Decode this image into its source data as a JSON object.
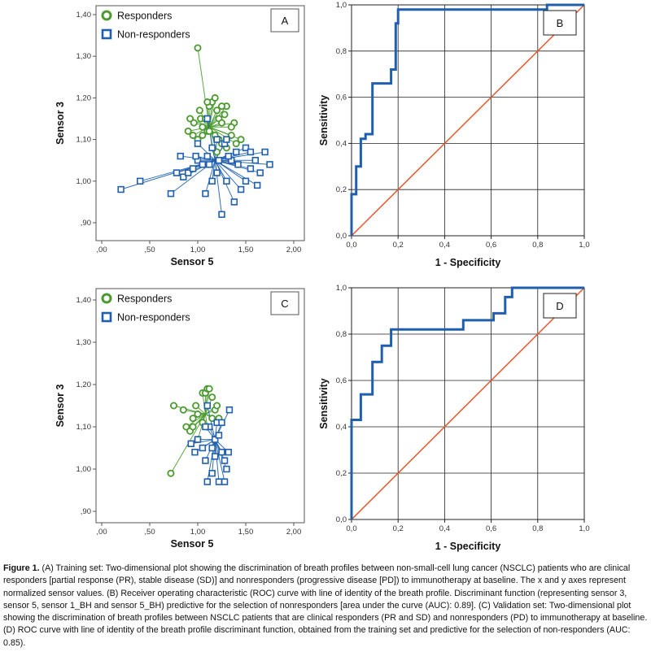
{
  "colors": {
    "responders": "#4a9a2f",
    "non_responders": "#1f5fae",
    "roc": "#1f5fae",
    "identity": "#e8572a",
    "grid": "#222"
  },
  "caption": {
    "title": "Figure 1.",
    "text": " (A) Training set: Two-dimensional plot showing the discrimination of breath profiles between non-small-cell lung cancer (NSCLC) patients who are clinical responders [partial response (PR), stable disease (SD)] and nonresponders (progressive disease [PD]) to immunotherapy at baseline. The x and y axes represent normalized sensor values. (B) Receiver operating characteristic (ROC) curve with line of identity of the breath profile. Discriminant function (representing sensor 3, sensor 5, sensor 1_BH and sensor 5_BH) predictive for the selection of nonresponders [area under the curve (AUC): 0.89]. (C) Validation set: Two-dimensional plot showing the discrimination of breath profiles between NSCLC patients that are clinical responders (PR and SD) and nonresponders (PD) to immunotherapy at baseline. (D) ROC curve with line of identity of the breath profile discriminant function, obtained from the training set and predictive for the selection of non-responders (AUC: 0.85)."
  },
  "chart_data": [
    {
      "panel": "A",
      "type": "scatter",
      "xlabel": "Sensor 5",
      "ylabel": "Sensor 3",
      "xlim": [
        0,
        2
      ],
      "ylim": [
        0.9,
        1.4
      ],
      "xticks": [
        ",00",
        ",50",
        "1,00",
        "1,50",
        "2,00"
      ],
      "yticks": [
        ",90",
        "1,00",
        "1,10",
        "1,20",
        "1,30",
        "1,40"
      ],
      "xtick_values": [
        0,
        0.5,
        1,
        1.5,
        2
      ],
      "ytick_values": [
        0.9,
        1.0,
        1.1,
        1.2,
        1.3,
        1.4
      ],
      "legend": [
        "Responders",
        "Non-responders"
      ],
      "legend_position": "top-left",
      "centroids": {
        "responders": [
          1.12,
          1.13
        ],
        "non_responders": [
          1.18,
          1.05
        ]
      },
      "series": [
        {
          "name": "Responders",
          "marker": "circle",
          "points": [
            [
              1.0,
              1.32
            ],
            [
              0.92,
              1.15
            ],
            [
              0.96,
              1.14
            ],
            [
              1.02,
              1.17
            ],
            [
              1.03,
              1.15
            ],
            [
              1.05,
              1.13
            ],
            [
              1.1,
              1.12
            ],
            [
              1.12,
              1.18
            ],
            [
              1.15,
              1.19
            ],
            [
              1.18,
              1.2
            ],
            [
              1.2,
              1.17
            ],
            [
              1.22,
              1.15
            ],
            [
              1.25,
              1.14
            ],
            [
              1.28,
              1.16
            ],
            [
              1.3,
              1.18
            ],
            [
              1.38,
              1.14
            ],
            [
              0.9,
              1.12
            ],
            [
              0.95,
              1.11
            ],
            [
              1.0,
              1.1
            ],
            [
              1.08,
              1.15
            ],
            [
              1.12,
              1.12
            ],
            [
              1.18,
              1.11
            ],
            [
              1.22,
              1.1
            ],
            [
              1.25,
              1.09
            ],
            [
              1.3,
              1.08
            ],
            [
              1.35,
              1.11
            ],
            [
              1.4,
              1.09
            ],
            [
              1.45,
              1.1
            ],
            [
              1.15,
              1.08
            ],
            [
              1.2,
              1.07
            ],
            [
              1.1,
              1.19
            ],
            [
              1.05,
              1.11
            ],
            [
              1.25,
              1.18
            ],
            [
              1.35,
              1.13
            ]
          ]
        },
        {
          "name": "Non-responders",
          "marker": "square",
          "points": [
            [
              0.2,
              0.98
            ],
            [
              0.4,
              1.0
            ],
            [
              0.72,
              0.97
            ],
            [
              0.78,
              1.02
            ],
            [
              0.85,
              1.01
            ],
            [
              0.9,
              1.02
            ],
            [
              0.95,
              1.03
            ],
            [
              1.0,
              1.05
            ],
            [
              1.05,
              1.04
            ],
            [
              1.08,
              0.97
            ],
            [
              1.15,
              1.0
            ],
            [
              1.2,
              1.02
            ],
            [
              1.25,
              0.92
            ],
            [
              1.3,
              1.0
            ],
            [
              1.38,
              0.95
            ],
            [
              1.45,
              0.98
            ],
            [
              1.5,
              1.0
            ],
            [
              1.55,
              1.03
            ],
            [
              1.6,
              1.05
            ],
            [
              1.65,
              1.02
            ],
            [
              1.7,
              1.07
            ],
            [
              1.75,
              1.04
            ],
            [
              1.5,
              1.08
            ],
            [
              1.4,
              1.07
            ],
            [
              1.35,
              1.05
            ],
            [
              1.28,
              1.09
            ],
            [
              1.2,
              1.1
            ],
            [
              1.15,
              1.08
            ],
            [
              1.1,
              1.06
            ],
            [
              0.98,
              1.06
            ],
            [
              0.82,
              1.06
            ],
            [
              1.12,
              1.04
            ],
            [
              1.22,
              1.05
            ],
            [
              1.32,
              1.06
            ],
            [
              1.42,
              1.04
            ],
            [
              1.55,
              1.07
            ],
            [
              1.62,
              0.99
            ],
            [
              1.0,
              1.09
            ],
            [
              1.1,
              1.15
            ],
            [
              1.3,
              1.1
            ]
          ]
        }
      ]
    },
    {
      "panel": "B",
      "type": "line",
      "xlabel": "1 - Specificity",
      "ylabel": "Sensitivity",
      "xlim": [
        0,
        1
      ],
      "ylim": [
        0,
        1
      ],
      "xticks": [
        "0,0",
        "0,2",
        "0,4",
        "0,6",
        "0,8",
        "1,0"
      ],
      "yticks": [
        "0,0",
        "0,2",
        "0,4",
        "0,6",
        "0,8",
        "1,0"
      ],
      "tick_values": [
        0,
        0.2,
        0.4,
        0.6,
        0.8,
        1.0
      ],
      "series": [
        {
          "name": "ROC",
          "x": [
            0,
            0,
            0.02,
            0.02,
            0.04,
            0.04,
            0.06,
            0.06,
            0.09,
            0.09,
            0.17,
            0.17,
            0.19,
            0.19,
            0.2,
            0.2,
            0.84,
            0.84,
            0.86,
            0.86,
            1.0
          ],
          "y": [
            0,
            0.18,
            0.18,
            0.3,
            0.3,
            0.42,
            0.42,
            0.44,
            0.44,
            0.66,
            0.66,
            0.72,
            0.72,
            0.92,
            0.92,
            0.98,
            0.98,
            1.0,
            1.0,
            1.0,
            1.0
          ]
        },
        {
          "name": "Identity",
          "x": [
            0,
            1
          ],
          "y": [
            0,
            1
          ]
        }
      ]
    },
    {
      "panel": "C",
      "type": "scatter",
      "xlabel": "Sensor 5",
      "ylabel": "Sensor 3",
      "xlim": [
        0,
        2
      ],
      "ylim": [
        0.9,
        1.4
      ],
      "xticks": [
        ",00",
        ",50",
        "1,00",
        "1,50",
        "2,00"
      ],
      "yticks": [
        ",90",
        "1,00",
        "1,10",
        "1,20",
        "1,30",
        "1,40"
      ],
      "xtick_values": [
        0,
        0.5,
        1,
        1.5,
        2
      ],
      "ytick_values": [
        0.9,
        1.0,
        1.1,
        1.2,
        1.3,
        1.4
      ],
      "legend": [
        "Responders",
        "Non-responders"
      ],
      "legend_position": "top-left",
      "centroids": {
        "responders": [
          1.08,
          1.13
        ],
        "non_responders": [
          1.18,
          1.07
        ]
      },
      "series": [
        {
          "name": "Responders",
          "marker": "circle",
          "points": [
            [
              0.72,
              0.99
            ],
            [
              0.75,
              1.15
            ],
            [
              0.85,
              1.14
            ],
            [
              0.88,
              1.1
            ],
            [
              0.92,
              1.09
            ],
            [
              0.95,
              1.1
            ],
            [
              0.98,
              1.15
            ],
            [
              1.0,
              1.13
            ],
            [
              1.05,
              1.18
            ],
            [
              1.08,
              1.18
            ],
            [
              1.1,
              1.19
            ],
            [
              1.12,
              1.19
            ],
            [
              1.15,
              1.17
            ],
            [
              1.18,
              1.14
            ],
            [
              1.2,
              1.15
            ],
            [
              1.1,
              1.1
            ],
            [
              1.05,
              1.11
            ],
            [
              1.22,
              1.12
            ],
            [
              0.95,
              1.12
            ],
            [
              1.0,
              1.07
            ],
            [
              1.15,
              1.12
            ]
          ]
        },
        {
          "name": "Non-responders",
          "marker": "square",
          "points": [
            [
              0.93,
              1.06
            ],
            [
              0.97,
              1.04
            ],
            [
              1.0,
              1.07
            ],
            [
              1.05,
              1.05
            ],
            [
              1.08,
              1.02
            ],
            [
              1.1,
              0.97
            ],
            [
              1.12,
              1.1
            ],
            [
              1.15,
              1.05
            ],
            [
              1.18,
              1.07
            ],
            [
              1.2,
              1.11
            ],
            [
              1.22,
              1.08
            ],
            [
              1.25,
              1.04
            ],
            [
              1.28,
              0.97
            ],
            [
              1.3,
              1.0
            ],
            [
              1.32,
              1.04
            ],
            [
              1.33,
              1.14
            ],
            [
              1.22,
              0.97
            ],
            [
              1.15,
              0.99
            ],
            [
              1.25,
              1.11
            ],
            [
              1.1,
              1.15
            ],
            [
              1.08,
              1.1
            ],
            [
              1.18,
              1.03
            ],
            [
              1.28,
              1.02
            ]
          ]
        }
      ]
    },
    {
      "panel": "D",
      "type": "line",
      "xlabel": "1 - Specificity",
      "ylabel": "Sensitivity",
      "xlim": [
        0,
        1
      ],
      "ylim": [
        0,
        1
      ],
      "xticks": [
        "0,0",
        "0,2",
        "0,4",
        "0,6",
        "0,8",
        "1,0"
      ],
      "yticks": [
        "0,0",
        "0,2",
        "0,4",
        "0,6",
        "0,8",
        "1,0"
      ],
      "tick_values": [
        0,
        0.2,
        0.4,
        0.6,
        0.8,
        1.0
      ],
      "series": [
        {
          "name": "ROC",
          "x": [
            0,
            0,
            0.04,
            0.04,
            0.09,
            0.09,
            0.13,
            0.13,
            0.17,
            0.17,
            0.48,
            0.48,
            0.61,
            0.61,
            0.66,
            0.66,
            0.69,
            0.69,
            0.85,
            0.85,
            1.0
          ],
          "y": [
            0,
            0.43,
            0.43,
            0.54,
            0.54,
            0.68,
            0.68,
            0.75,
            0.75,
            0.82,
            0.82,
            0.86,
            0.86,
            0.89,
            0.89,
            0.96,
            0.96,
            1.0,
            1.0,
            1.0,
            1.0
          ]
        },
        {
          "name": "Identity",
          "x": [
            0,
            1
          ],
          "y": [
            0,
            1
          ]
        }
      ]
    }
  ]
}
